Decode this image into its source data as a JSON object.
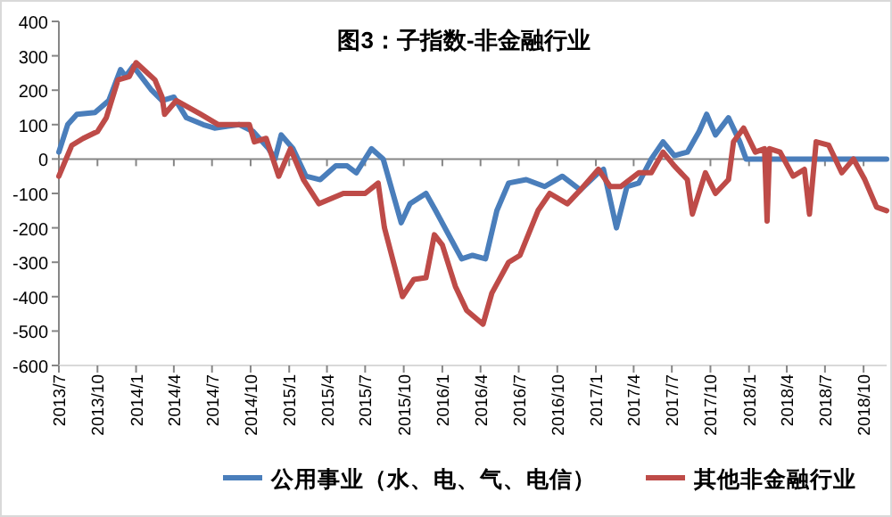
{
  "chart_data": {
    "type": "line",
    "title": "图3：子指数-非金融行业",
    "legend": "bottom",
    "xlim": [
      "2013-07-01",
      "2018-11-25"
    ],
    "ylim": [
      -600,
      400
    ],
    "yticks": [
      -600,
      -500,
      -400,
      -300,
      -200,
      -100,
      0,
      100,
      200,
      300,
      400
    ],
    "xticks": [
      {
        "value": "2013-07-01",
        "label": "2013/7"
      },
      {
        "value": "2013-10-01",
        "label": "2013/10"
      },
      {
        "value": "2014-01-01",
        "label": "2014/1"
      },
      {
        "value": "2014-04-01",
        "label": "2014/4"
      },
      {
        "value": "2014-07-01",
        "label": "2014/7"
      },
      {
        "value": "2014-10-01",
        "label": "2014/10"
      },
      {
        "value": "2015-01-01",
        "label": "2015/1"
      },
      {
        "value": "2015-04-01",
        "label": "2015/4"
      },
      {
        "value": "2015-07-01",
        "label": "2015/7"
      },
      {
        "value": "2015-10-01",
        "label": "2015/10"
      },
      {
        "value": "2016-01-01",
        "label": "2016/1"
      },
      {
        "value": "2016-04-01",
        "label": "2016/4"
      },
      {
        "value": "2016-07-01",
        "label": "2016/7"
      },
      {
        "value": "2016-10-01",
        "label": "2016/10"
      },
      {
        "value": "2017-01-01",
        "label": "2017/1"
      },
      {
        "value": "2017-04-01",
        "label": "2017/4"
      },
      {
        "value": "2017-07-01",
        "label": "2017/7"
      },
      {
        "value": "2017-10-01",
        "label": "2017/10"
      },
      {
        "value": "2018-01-01",
        "label": "2018/1"
      },
      {
        "value": "2018-04-01",
        "label": "2018/4"
      },
      {
        "value": "2018-07-01",
        "label": "2018/7"
      },
      {
        "value": "2018-10-01",
        "label": "2018/10"
      }
    ],
    "series": [
      {
        "name": "公用事业（水、电、气、电信）",
        "color": "#4a7ebb",
        "x": [
          "2013-07-01",
          "2013-07-22",
          "2013-08-13",
          "2013-09-25",
          "2013-10-28",
          "2013-11-25",
          "2013-12-07",
          "2013-12-25",
          "2014-02-07",
          "2014-03-04",
          "2014-04-01",
          "2014-05-01",
          "2014-06-10",
          "2014-07-07",
          "2014-09-04",
          "2014-10-07",
          "2014-11-13",
          "2014-11-28",
          "2014-12-13",
          "2015-01-10",
          "2015-02-10",
          "2015-03-16",
          "2015-04-22",
          "2015-05-19",
          "2015-06-10",
          "2015-07-16",
          "2015-08-13",
          "2015-09-25",
          "2015-10-16",
          "2015-11-23",
          "2015-12-16",
          "2016-02-16",
          "2016-03-13",
          "2016-04-13",
          "2016-05-10",
          "2016-06-07",
          "2016-07-19",
          "2016-09-01",
          "2016-10-13",
          "2016-11-25",
          "2017-01-07",
          "2017-01-19",
          "2017-02-19",
          "2017-03-16",
          "2017-04-13",
          "2017-05-13",
          "2017-06-10",
          "2017-07-07",
          "2017-08-07",
          "2017-09-04",
          "2017-09-22",
          "2017-10-13",
          "2017-11-13",
          "2017-12-10",
          "2017-12-25",
          "2018-11-25"
        ],
        "values": [
          20,
          100,
          130,
          135,
          170,
          260,
          240,
          270,
          200,
          170,
          180,
          120,
          100,
          90,
          100,
          80,
          30,
          0,
          70,
          30,
          -50,
          -60,
          -20,
          -20,
          -40,
          30,
          0,
          -185,
          -130,
          -100,
          -150,
          -290,
          -280,
          -290,
          -150,
          -70,
          -60,
          -80,
          -50,
          -90,
          -40,
          -30,
          -200,
          -80,
          -70,
          0,
          50,
          10,
          20,
          80,
          130,
          70,
          120,
          50,
          0,
          0
        ]
      },
      {
        "name": "其他非金融行业",
        "color": "#be4b48",
        "x": [
          "2013-07-01",
          "2013-08-01",
          "2013-08-28",
          "2013-10-01",
          "2013-10-22",
          "2013-11-19",
          "2013-12-16",
          "2014-01-01",
          "2014-02-15",
          "2014-03-04",
          "2014-03-10",
          "2014-04-07",
          "2014-06-04",
          "2014-07-16",
          "2014-09-28",
          "2014-10-10",
          "2014-11-07",
          "2014-12-07",
          "2015-01-04",
          "2015-02-04",
          "2015-03-13",
          "2015-05-10",
          "2015-07-01",
          "2015-08-01",
          "2015-08-16",
          "2015-09-28",
          "2015-10-25",
          "2015-11-23",
          "2015-12-13",
          "2016-01-01",
          "2016-02-01",
          "2016-02-28",
          "2016-04-07",
          "2016-04-28",
          "2016-06-07",
          "2016-07-04",
          "2016-08-16",
          "2016-09-13",
          "2016-10-25",
          "2016-11-25",
          "2017-01-07",
          "2017-02-04",
          "2017-03-01",
          "2017-04-13",
          "2017-05-13",
          "2017-06-10",
          "2017-07-07",
          "2017-08-07",
          "2017-08-19",
          "2017-09-19",
          "2017-10-13",
          "2017-11-13",
          "2017-11-25",
          "2017-12-19",
          "2018-01-16",
          "2018-02-07",
          "2018-02-13",
          "2018-02-19",
          "2018-03-16",
          "2018-04-16",
          "2018-05-13",
          "2018-05-25",
          "2018-06-10",
          "2018-07-10",
          "2018-08-10",
          "2018-09-07",
          "2018-10-04",
          "2018-11-01",
          "2018-11-25"
        ],
        "values": [
          -50,
          40,
          60,
          80,
          120,
          230,
          240,
          280,
          230,
          180,
          130,
          170,
          130,
          100,
          100,
          50,
          60,
          -50,
          30,
          -60,
          -130,
          -100,
          -100,
          -70,
          -200,
          -400,
          -350,
          -345,
          -220,
          -250,
          -370,
          -440,
          -480,
          -390,
          -300,
          -280,
          -150,
          -100,
          -130,
          -90,
          -30,
          -80,
          -80,
          -40,
          -40,
          20,
          -20,
          -60,
          -160,
          -40,
          -100,
          -60,
          50,
          90,
          20,
          30,
          -180,
          30,
          20,
          -50,
          -30,
          -160,
          50,
          40,
          -40,
          0,
          -60,
          -140,
          -150
        ]
      }
    ]
  }
}
